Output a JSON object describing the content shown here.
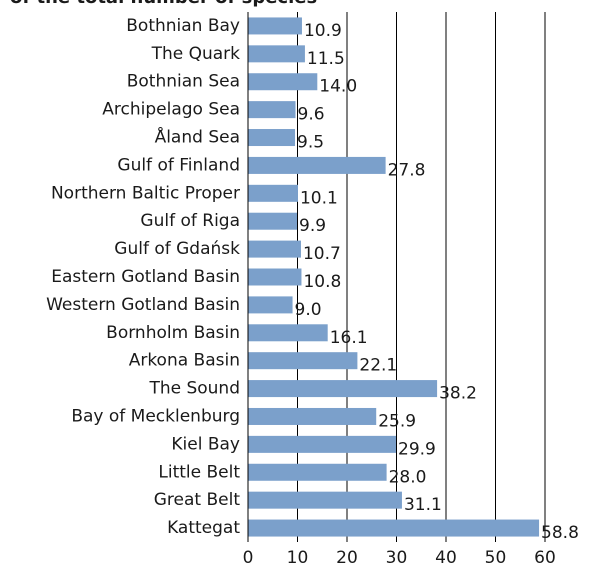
{
  "chart_data": {
    "type": "bar",
    "orientation": "horizontal",
    "title": "of the total number of species",
    "categories": [
      "Bothnian Bay",
      "The Quark",
      "Bothnian Sea",
      "Archipelago Sea",
      "Åland Sea",
      "Gulf of Finland",
      "Northern Baltic Proper",
      "Gulf of Riga",
      "Gulf of Gdańsk",
      "Eastern Gotland Basin",
      "Western Gotland Basin",
      "Bornholm Basin",
      "Arkona Basin",
      "The Sound",
      "Bay of Mecklenburg",
      "Kiel Bay",
      "Little Belt",
      "Great Belt",
      "Kattegat"
    ],
    "values": [
      10.9,
      11.5,
      14.0,
      9.6,
      9.5,
      27.8,
      10.1,
      9.9,
      10.7,
      10.8,
      9.0,
      16.1,
      22.1,
      38.2,
      25.9,
      29.9,
      28.0,
      31.1,
      58.8
    ],
    "value_labels": [
      "10.9",
      "11.5",
      "14.0",
      "9.6",
      "9.5",
      "27.8",
      "10.1",
      "9.9",
      "10.7",
      "10.8",
      "9.0",
      "16.1",
      "22.1",
      "38.2",
      "25.9",
      "29.9",
      "28.0",
      "31.1",
      "58.8"
    ],
    "color": "#7ba0cb",
    "xlim": [
      0,
      60
    ],
    "xticks": [
      0,
      10,
      20,
      30,
      40,
      50,
      60
    ],
    "grid": true
  }
}
